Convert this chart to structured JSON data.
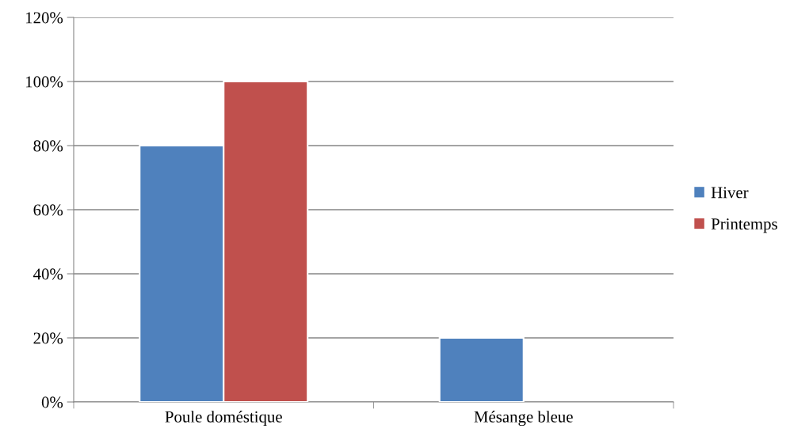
{
  "chart_data": {
    "type": "bar",
    "categories": [
      "Poule doméstique",
      "Mésange bleue"
    ],
    "series": [
      {
        "name": "Hiver",
        "color": "#4f81bd",
        "values": [
          80,
          20
        ]
      },
      {
        "name": "Printemps",
        "color": "#c0504d",
        "values": [
          100,
          null
        ]
      }
    ],
    "ylim": [
      0,
      120
    ],
    "yticks": [
      {
        "value": 0,
        "label": "0%"
      },
      {
        "value": 20,
        "label": "20%"
      },
      {
        "value": 40,
        "label": "40%"
      },
      {
        "value": 60,
        "label": "60%"
      },
      {
        "value": 80,
        "label": "80%"
      },
      {
        "value": 100,
        "label": "100%"
      },
      {
        "value": 120,
        "label": "120%"
      }
    ],
    "grid": "y",
    "legend": "right"
  }
}
